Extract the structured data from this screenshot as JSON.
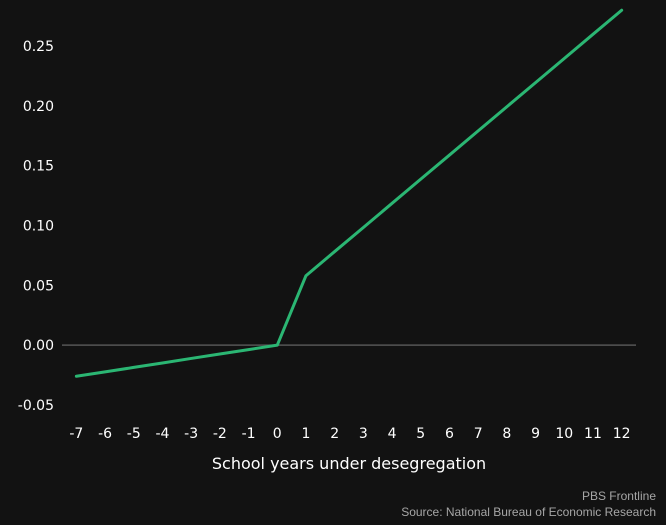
{
  "chart_data": {
    "type": "line",
    "title": "",
    "xlabel": "School years under desegregation",
    "ylabel": "",
    "x": [
      -7,
      -6,
      -5,
      -4,
      -3,
      -2,
      -1,
      0,
      1,
      2,
      3,
      4,
      5,
      6,
      7,
      8,
      9,
      10,
      11,
      12
    ],
    "xticks": [
      "-7",
      "-6",
      "-5",
      "-4",
      "-3",
      "-2",
      "-1",
      "0",
      "1",
      "2",
      "3",
      "4",
      "5",
      "6",
      "7",
      "8",
      "9",
      "10",
      "11",
      "12"
    ],
    "yticks": [
      -0.05,
      0.0,
      0.05,
      0.1,
      0.15,
      0.2,
      0.25
    ],
    "ytick_labels": [
      "-0.05",
      "0.00",
      "0.05",
      "0.10",
      "0.15",
      "0.20",
      "0.25"
    ],
    "xlim": [
      -7.5,
      12.5
    ],
    "ylim": [
      -0.05,
      0.28
    ],
    "grid": false,
    "zero_line": true,
    "series": [
      {
        "values": [
          -0.026,
          -0.0223,
          -0.0186,
          -0.0149,
          -0.0111,
          -0.0074,
          -0.0037,
          0.0,
          0.058,
          0.0782,
          0.0983,
          0.1185,
          0.1387,
          0.1588,
          0.179,
          0.1992,
          0.2193,
          0.2395,
          0.2597,
          0.2798
        ],
        "color": "#2bb673"
      }
    ],
    "colors": {
      "background": "#121212",
      "axis_text": "#ffffff",
      "zero_line": "#555555",
      "credit_text": "#a6a6a6"
    }
  },
  "credits": {
    "line1": "PBS Frontline",
    "line2": "Source: National Bureau of Economic Research"
  }
}
